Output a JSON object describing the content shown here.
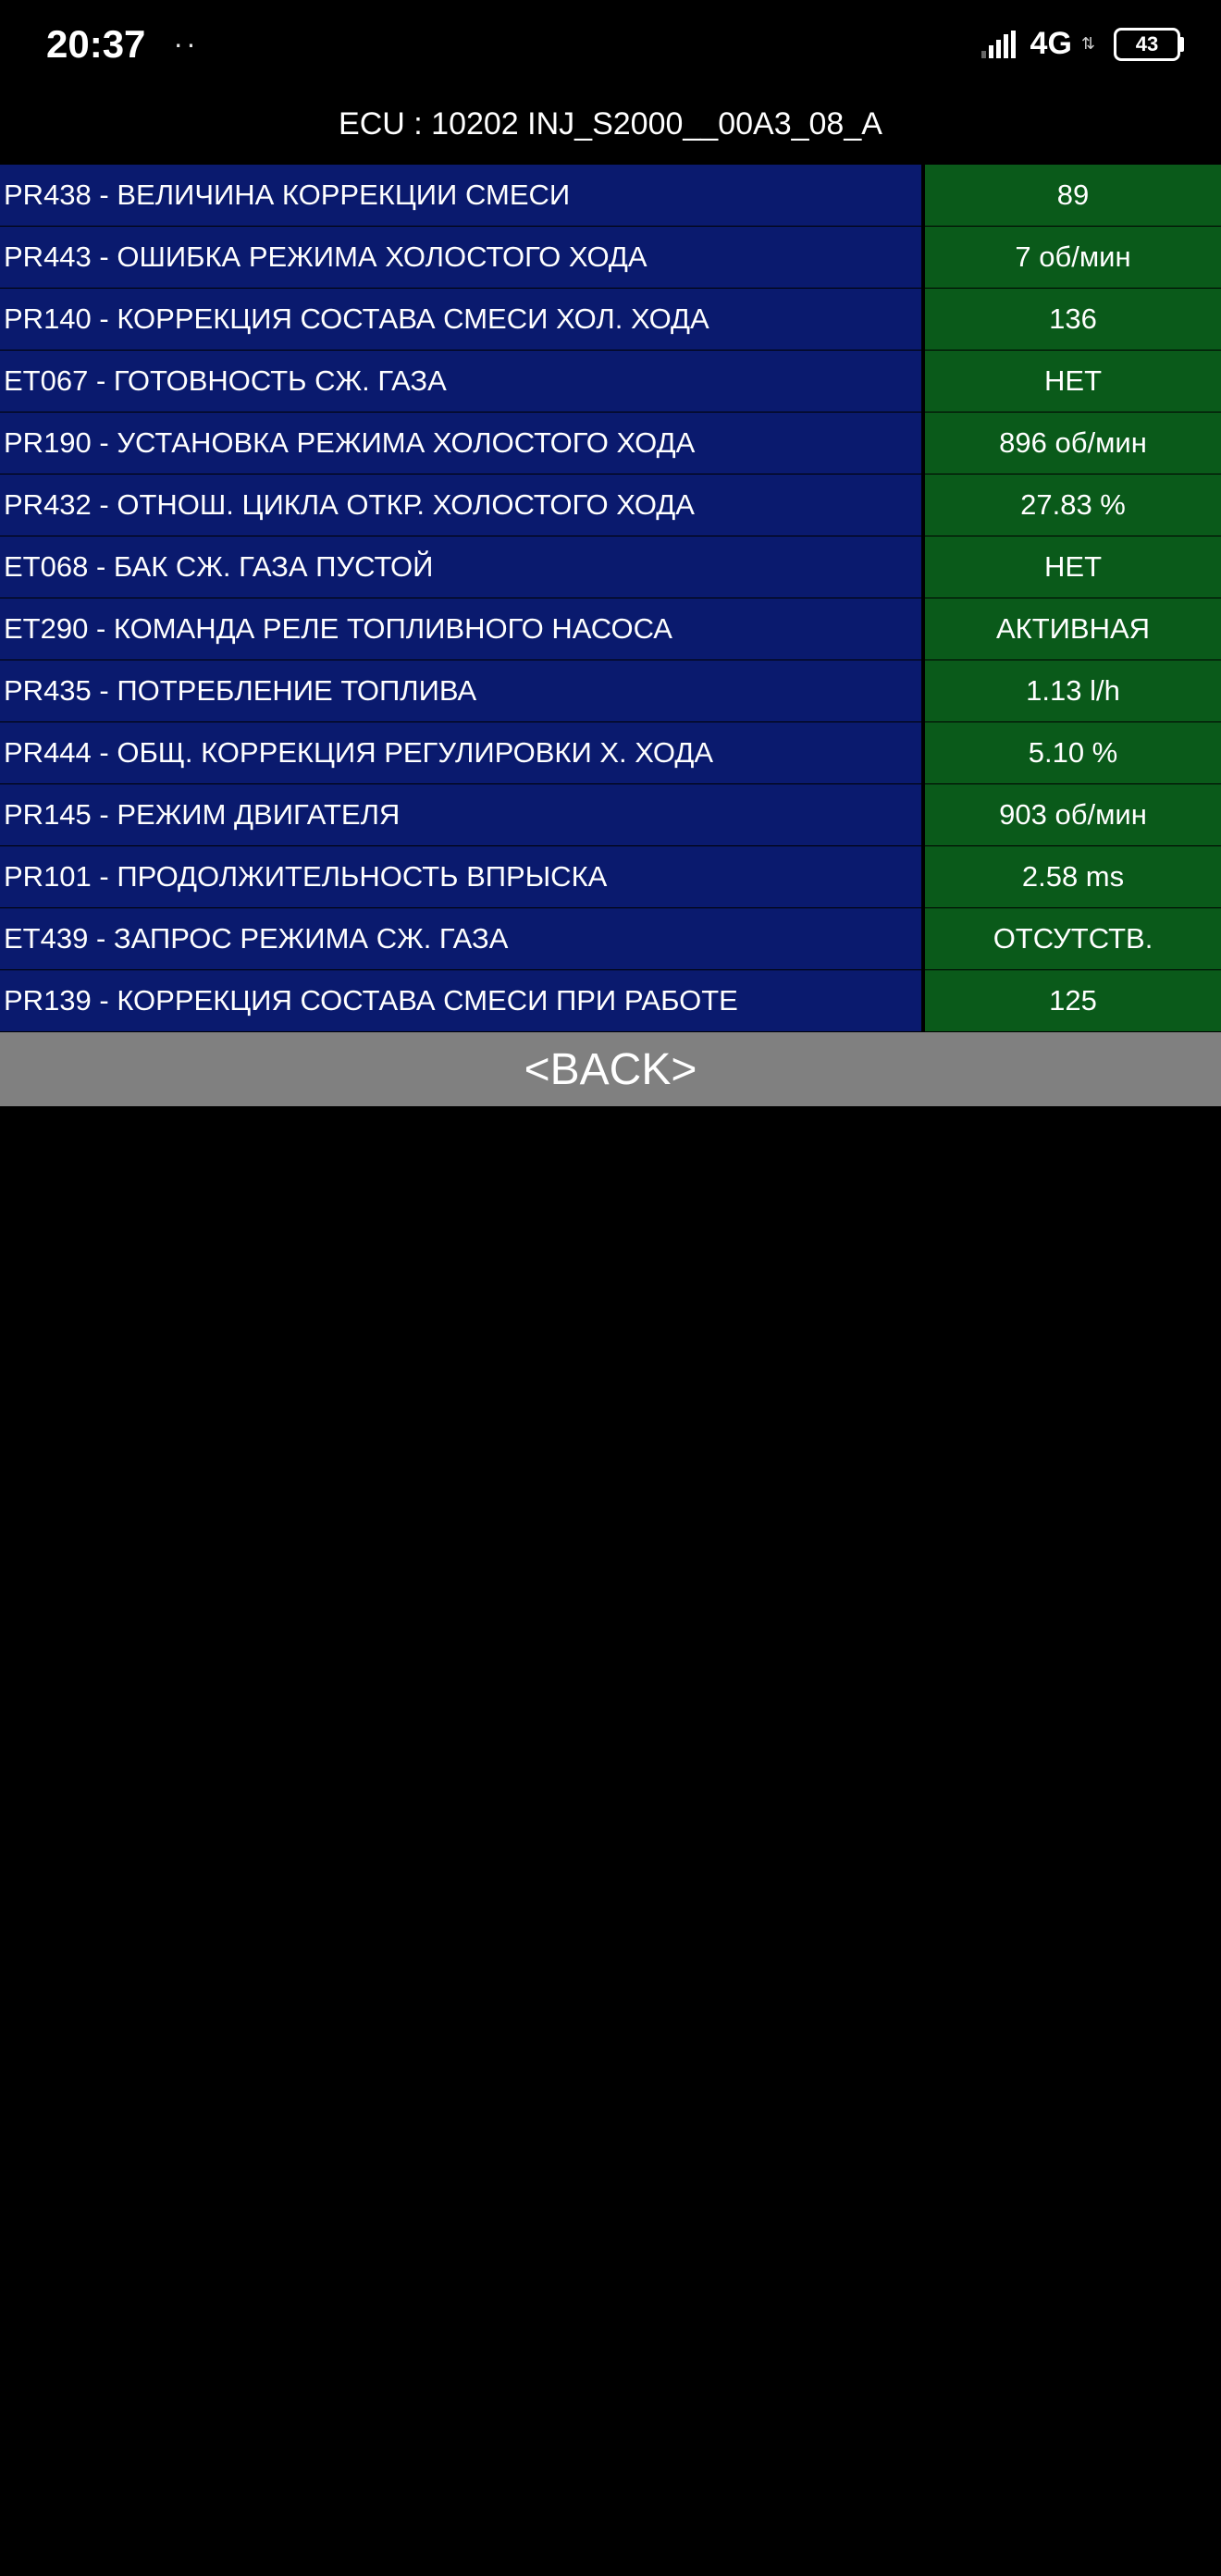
{
  "statusBar": {
    "time": "20:37",
    "dots": "··",
    "networkLabel": "4G",
    "batteryLevel": "43"
  },
  "ecuHeader": "ECU : 10202  INJ_S2000__00A3_08_A",
  "params": [
    {
      "label": "PR438 - ВЕЛИЧИНА КОРРЕКЦИИ СМЕСИ",
      "value": "89"
    },
    {
      "label": "PR443 - ОШИБКА РЕЖИМА ХОЛОСТОГО ХОДА",
      "value": "7 об/мин"
    },
    {
      "label": "PR140 - КОРРЕКЦИЯ СОСТАВА СМЕСИ ХОЛ. ХОДА",
      "value": "136"
    },
    {
      "label": "ET067 - ГОТОВНОСТЬ СЖ. ГАЗА",
      "value": "НЕТ"
    },
    {
      "label": "PR190 - УСТАНОВКА РЕЖИМА ХОЛОСТОГО ХОДА",
      "value": "896 об/мин"
    },
    {
      "label": "PR432 - ОТНОШ. ЦИКЛА ОТКР. ХОЛОСТОГО ХОДА",
      "value": "27.83 %"
    },
    {
      "label": "ET068 - БАК СЖ. ГАЗА ПУСТОЙ",
      "value": "НЕТ"
    },
    {
      "label": "ET290 - КОМАНДА РЕЛЕ ТОПЛИВНОГО НАСОСА",
      "value": "АКТИВНАЯ"
    },
    {
      "label": "PR435 - ПОТРЕБЛЕНИЕ ТОПЛИВА",
      "value": "1.13 l/h"
    },
    {
      "label": "PR444 - ОБЩ. КОРРЕКЦИЯ РЕГУЛИРОВКИ Х. ХОДА",
      "value": "5.10 %"
    },
    {
      "label": "PR145 - РЕЖИМ ДВИГАТЕЛЯ",
      "value": "903 об/мин"
    },
    {
      "label": "PR101 - ПРОДОЛЖИТЕЛЬНОСТЬ ВПРЫСКА",
      "value": "2.58 ms"
    },
    {
      "label": "ET439 - ЗАПРОС РЕЖИМА СЖ. ГАЗА",
      "value": "ОТСУТСТВ."
    },
    {
      "label": "PR139 - КОРРЕКЦИЯ СОСТАВА СМЕСИ ПРИ РАБОТЕ",
      "value": "125"
    }
  ],
  "backButton": "<BACK>",
  "colors": {
    "background": "#000000",
    "labelBg": "#0a1a6e",
    "valueBg": "#0a5a1a",
    "buttonBg": "#808080",
    "text": "#ffffff"
  }
}
